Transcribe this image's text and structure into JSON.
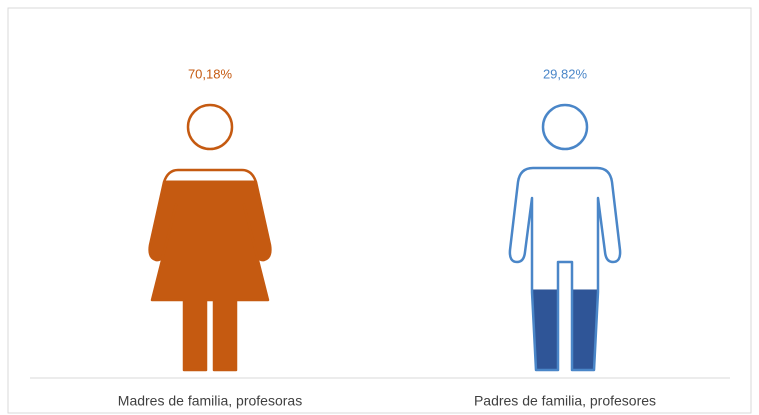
{
  "chart_data": {
    "type": "pictograph",
    "categories": [
      "Madres de familia, profesoras",
      "Padres de familia, profesores"
    ],
    "values": [
      70.18,
      29.82
    ],
    "value_labels": [
      "70,18%",
      "29,82%"
    ],
    "colors": [
      "#c55a11",
      "#2f5597"
    ],
    "ylim": [
      0,
      100
    ]
  }
}
